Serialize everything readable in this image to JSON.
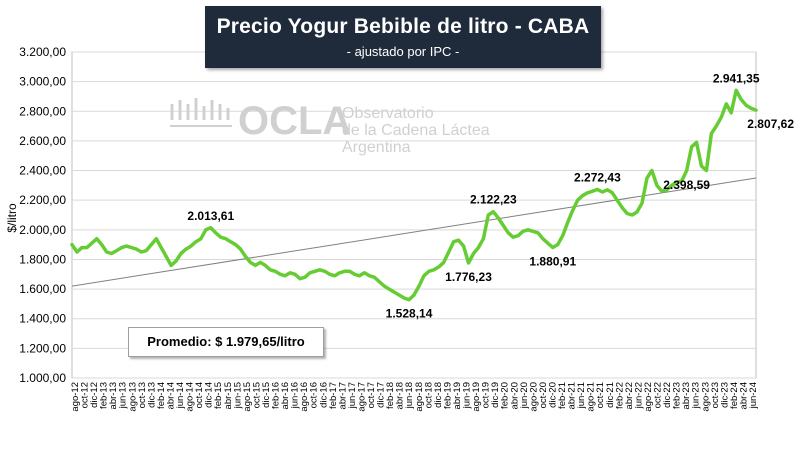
{
  "title": "Precio Yogur Bebible de litro - CABA",
  "subtitle": "- ajustado por IPC -",
  "average_label": "Promedio: $ 1.979,65/litro",
  "watermark": {
    "logo": "OCLA",
    "lines": [
      "Observatorio",
      "de la Cadena Láctea",
      "Argentina"
    ]
  },
  "colors": {
    "line": "#66cc33",
    "trend": "#808080",
    "title_bg": "#1f2b3a",
    "grid": "#d9d9d9"
  },
  "chart_data": {
    "type": "line",
    "title": "Precio Yogur Bebible de litro - CABA",
    "subtitle": "- ajustado por IPC -",
    "xlabel": "",
    "ylabel": "$/litro",
    "ylim": [
      1000,
      3200
    ],
    "yticks": [
      1000,
      1200,
      1400,
      1600,
      1800,
      2000,
      2200,
      2400,
      2600,
      2800,
      3000,
      3200
    ],
    "ytick_labels": [
      "1.000,00",
      "1.200,00",
      "1.400,00",
      "1.600,00",
      "1.800,00",
      "2.000,00",
      "2.200,00",
      "2.400,00",
      "2.600,00",
      "2.800,00",
      "3.000,00",
      "3.200,00"
    ],
    "x_tick_labels": [
      "ago-12",
      "oct-12",
      "dic-12",
      "feb-13",
      "abr-13",
      "jun-13",
      "ago-13",
      "oct-13",
      "dic-13",
      "feb-14",
      "abr-14",
      "jun-14",
      "ago-14",
      "oct-14",
      "dic-14",
      "feb-15",
      "abr-15",
      "jun-15",
      "ago-15",
      "oct-15",
      "dic-15",
      "feb-16",
      "abr-16",
      "jun-16",
      "ago-16",
      "oct-16",
      "dic-16",
      "feb-17",
      "abr-17",
      "jun-17",
      "ago-17",
      "oct-17",
      "dic-17",
      "feb-18",
      "abr-18",
      "jun-18",
      "ago-18",
      "oct-18",
      "dic-18",
      "feb-19",
      "abr-19",
      "jun-19",
      "ago-19",
      "oct-19",
      "dic-19",
      "feb-20",
      "abr-20",
      "jun-20",
      "ago-20",
      "oct-20",
      "dic-20",
      "feb-21",
      "abr-21",
      "jun-21",
      "ago-21",
      "oct-21",
      "dic-21",
      "feb-22",
      "abr-22",
      "jun-22",
      "ago-22",
      "oct-22",
      "dic-22",
      "feb-23",
      "abr-23",
      "jun-23",
      "ago-23",
      "oct-23",
      "dic-23",
      "feb-24",
      "abr-24",
      "jun-24"
    ],
    "grid": true,
    "legend": "none",
    "series": [
      {
        "values": [
          1900,
          1850,
          1880,
          1880,
          1910,
          1940,
          1900,
          1850,
          1840,
          1860,
          1880,
          1890,
          1880,
          1870,
          1850,
          1860,
          1900,
          1940,
          1880,
          1820,
          1760,
          1790,
          1840,
          1870,
          1890,
          1920,
          1940,
          2000,
          2013.61,
          1980,
          1950,
          1940,
          1920,
          1900,
          1870,
          1820,
          1780,
          1760,
          1780,
          1760,
          1730,
          1720,
          1700,
          1690,
          1710,
          1700,
          1670,
          1680,
          1710,
          1720,
          1730,
          1720,
          1700,
          1690,
          1710,
          1720,
          1720,
          1700,
          1690,
          1710,
          1690,
          1680,
          1650,
          1620,
          1600,
          1580,
          1560,
          1540,
          1528.14,
          1560,
          1620,
          1690,
          1720,
          1730,
          1750,
          1780,
          1850,
          1920,
          1930,
          1890,
          1776.23,
          1840,
          1880,
          1940,
          2100,
          2122.23,
          2080,
          2030,
          1980,
          1950,
          1960,
          1990,
          2000,
          1990,
          1980,
          1940,
          1910,
          1880.91,
          1900,
          1960,
          2050,
          2130,
          2200,
          2230,
          2250,
          2260,
          2272.43,
          2255,
          2270,
          2250,
          2200,
          2150,
          2110,
          2100,
          2120,
          2180,
          2350,
          2400,
          2300,
          2260,
          2270,
          2300,
          2320,
          2330,
          2398.59,
          2560,
          2590,
          2430,
          2400,
          2650,
          2700,
          2760,
          2850,
          2790,
          2941.35,
          2880,
          2840,
          2820,
          2807.62
        ]
      }
    ],
    "trend_line": {
      "start": 1620,
      "end": 2350
    },
    "annotations": [
      {
        "label": "2.013,61",
        "value": 2013.61
      },
      {
        "label": "1.528,14",
        "value": 1528.14
      },
      {
        "label": "1.776,23",
        "value": 1776.23
      },
      {
        "label": "2.122,23",
        "value": 2122.23
      },
      {
        "label": "1.880,91",
        "value": 1880.91
      },
      {
        "label": "2.272,43",
        "value": 2272.43
      },
      {
        "label": "2.398,59",
        "value": 2398.59
      },
      {
        "label": "2.941,35",
        "value": 2941.35
      },
      {
        "label": "2.807,62",
        "value": 2807.62
      }
    ]
  }
}
